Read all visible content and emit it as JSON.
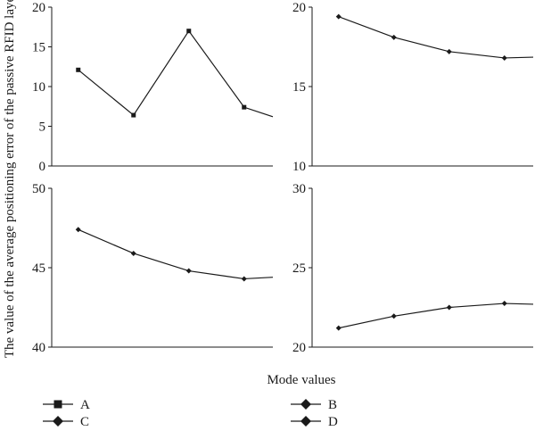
{
  "chart_data": {
    "type": "line",
    "ylabel": "The value of the average positioning error of the passive RFID layer",
    "xlabel": "Mode values",
    "line_color": "#1a1a1a",
    "panels": [
      {
        "series_name": "A",
        "marker": "square",
        "ylim": [
          0,
          20
        ],
        "yticks": [
          "0",
          "5",
          "10",
          "15",
          "20"
        ],
        "points": [
          12.1,
          6.4,
          17.0,
          7.4,
          6.2
        ]
      },
      {
        "series_name": "B",
        "marker": "diamond",
        "ylim": [
          10,
          20
        ],
        "yticks": [
          "10",
          "15",
          "20"
        ],
        "points": [
          19.4,
          18.1,
          17.2,
          16.8,
          16.85
        ]
      },
      {
        "series_name": "C",
        "marker": "diamond",
        "ylim": [
          40,
          50
        ],
        "yticks": [
          "40",
          "45",
          "50"
        ],
        "points": [
          47.4,
          45.9,
          44.8,
          44.3,
          44.4
        ]
      },
      {
        "series_name": "D",
        "marker": "diamond",
        "ylim": [
          20,
          30
        ],
        "yticks": [
          "20",
          "25",
          "30"
        ],
        "points": [
          21.2,
          21.95,
          22.5,
          22.75,
          22.7
        ]
      }
    ],
    "legend": [
      {
        "label": "A",
        "marker": "square"
      },
      {
        "label": "B",
        "marker": "diamond"
      },
      {
        "label": "C",
        "marker": "diamond"
      },
      {
        "label": "D",
        "marker": "diamond"
      }
    ]
  }
}
